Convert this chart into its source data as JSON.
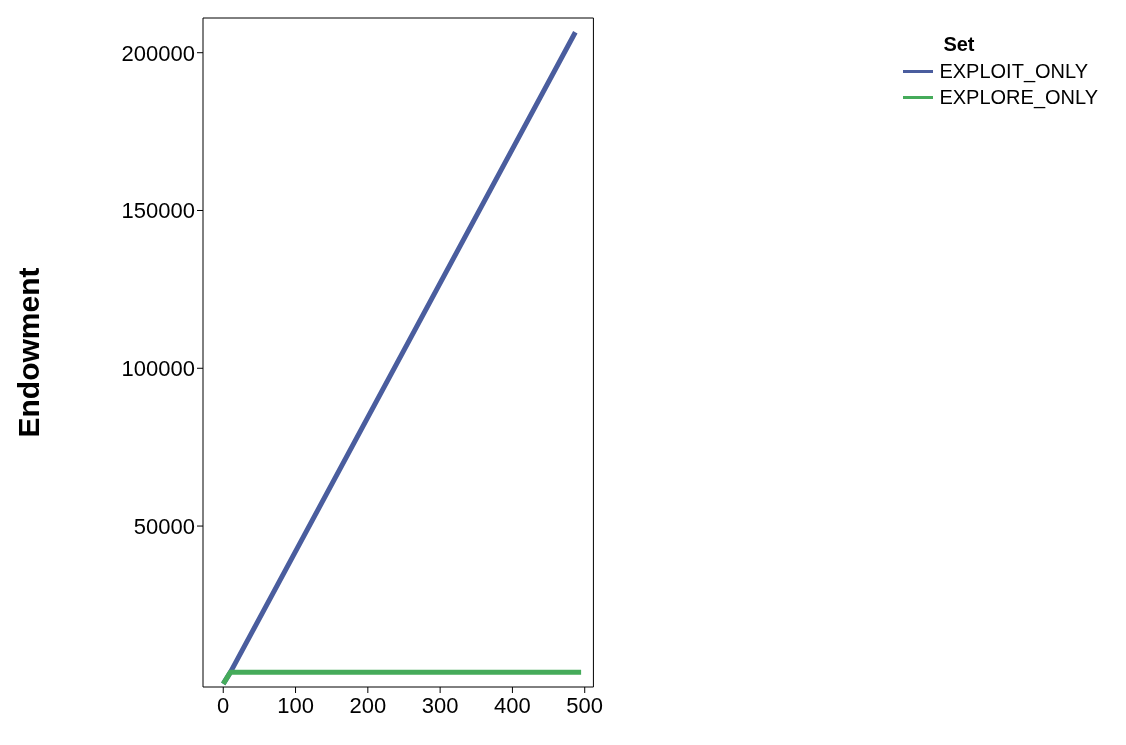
{
  "chart_data": {
    "type": "line",
    "ylabel": "Endowment",
    "legend_title": "Set",
    "legend": "top right",
    "grid": false,
    "marker": "none",
    "line_style": "solid",
    "xlim": [
      -28,
      512
    ],
    "xticks": [
      0,
      100,
      200,
      300,
      400,
      500
    ],
    "ylim": [
      -1000,
      211000
    ],
    "yticks": [
      50000,
      100000,
      150000,
      200000
    ],
    "series": [
      {
        "name": "EXPLOIT_ONLY",
        "color": "#4a5d9e",
        "x": [
          0,
          10,
          487
        ],
        "values": [
          0,
          3700,
          206500
        ]
      },
      {
        "name": "EXPLORE_ONLY",
        "color": "#45ab5a",
        "x": [
          0,
          10,
          495
        ],
        "values": [
          0,
          3700,
          3700
        ]
      }
    ]
  }
}
